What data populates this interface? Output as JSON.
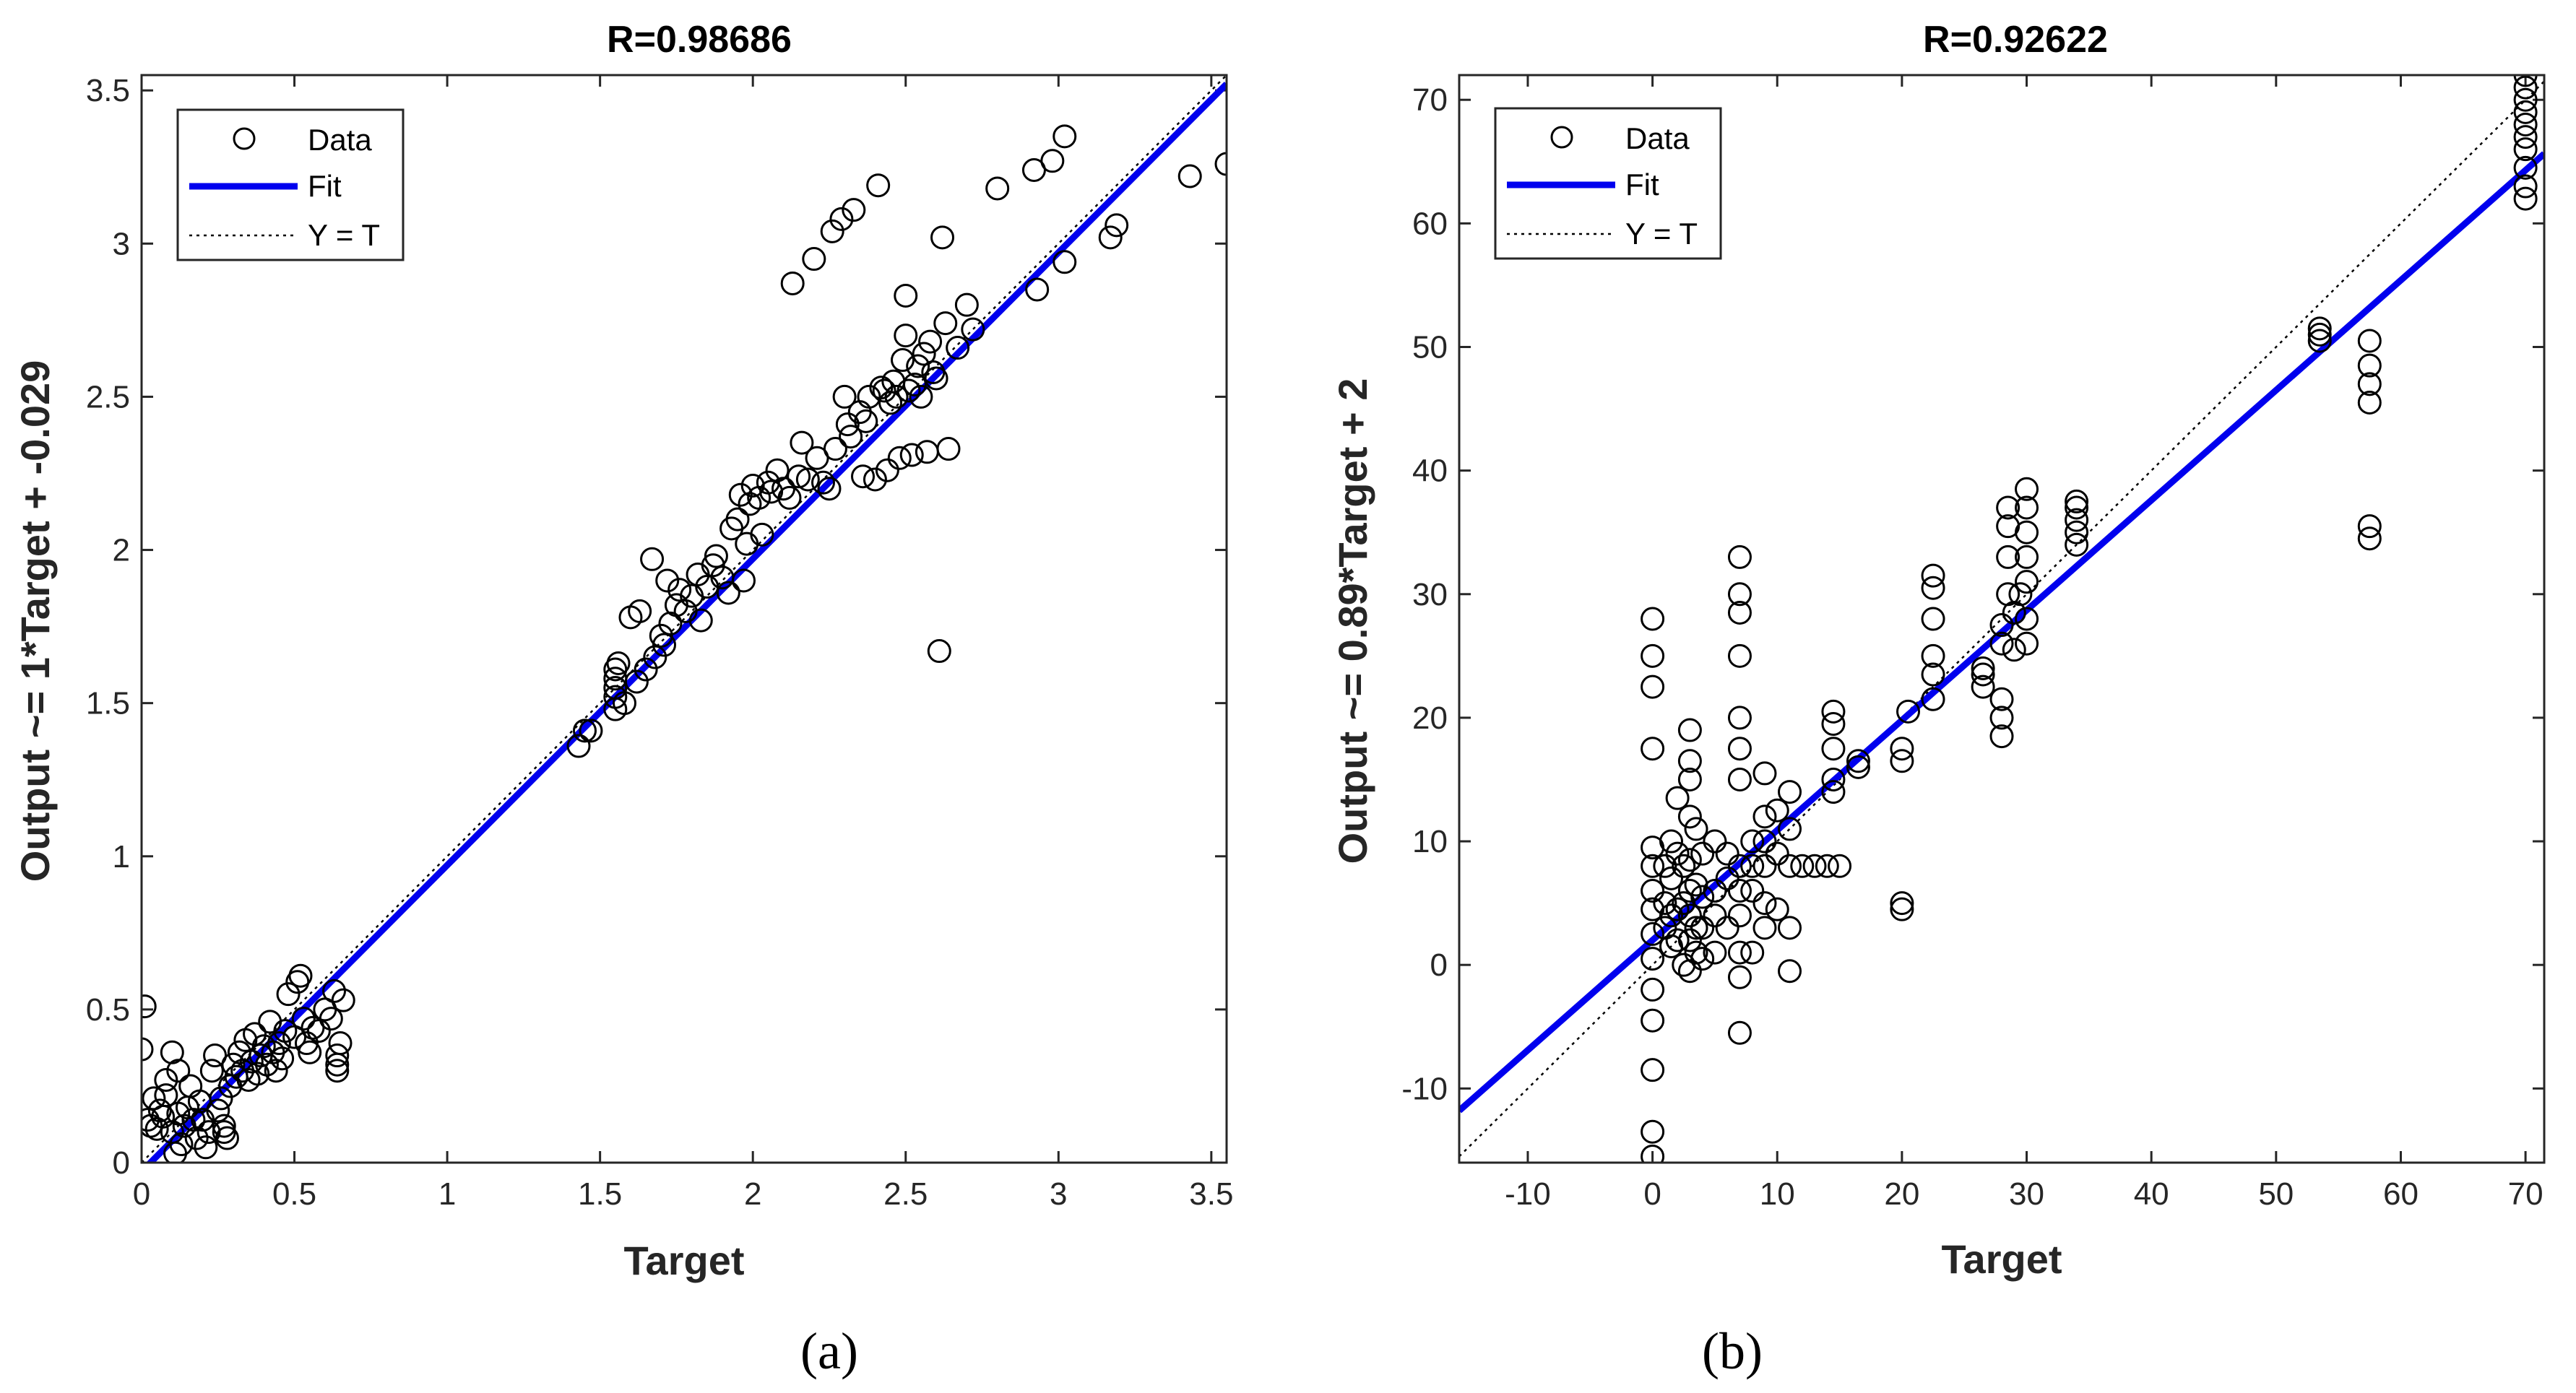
{
  "chart_data": [
    {
      "type": "scatter",
      "panel_label": "(a)",
      "title": "R=0.98686",
      "xlabel": "Target",
      "ylabel": "Output ~= 1*Target + -0.029",
      "xlim": [
        0,
        3.55
      ],
      "ylim": [
        0,
        3.55
      ],
      "xticks": [
        0,
        0.5,
        1,
        1.5,
        2,
        2.5,
        3,
        3.5
      ],
      "xtick_labels": [
        "0",
        "0.5",
        "1",
        "1.5",
        "2",
        "2.5",
        "3",
        "3.5"
      ],
      "yticks": [
        0,
        0.5,
        1,
        1.5,
        2,
        2.5,
        3,
        3.5
      ],
      "ytick_labels": [
        "0",
        "0.5",
        "1",
        "1.5",
        "2",
        "2.5",
        "3",
        "3.5"
      ],
      "legend": [
        "Data",
        "Fit",
        "Y = T"
      ],
      "legend_position": "top-left",
      "fit": {
        "slope": 1.0,
        "intercept": -0.029
      },
      "colors": {
        "fit": "#0000ee",
        "data": "#000000",
        "identity": "#000000"
      },
      "points": [
        [
          0.01,
          0.51
        ],
        [
          0.0,
          0.37
        ],
        [
          0.02,
          0.14
        ],
        [
          0.03,
          0.12
        ],
        [
          0.04,
          0.21
        ],
        [
          0.05,
          0.11
        ],
        [
          0.06,
          0.17
        ],
        [
          0.07,
          0.15
        ],
        [
          0.08,
          0.22
        ],
        [
          0.08,
          0.27
        ],
        [
          0.1,
          0.1
        ],
        [
          0.1,
          0.36
        ],
        [
          0.11,
          0.03
        ],
        [
          0.12,
          0.16
        ],
        [
          0.12,
          0.3
        ],
        [
          0.13,
          0.06
        ],
        [
          0.14,
          0.12
        ],
        [
          0.15,
          0.18
        ],
        [
          0.16,
          0.25
        ],
        [
          0.17,
          0.14
        ],
        [
          0.18,
          0.08
        ],
        [
          0.19,
          0.2
        ],
        [
          0.2,
          0.14
        ],
        [
          0.21,
          0.05
        ],
        [
          0.22,
          0.1
        ],
        [
          0.23,
          0.3
        ],
        [
          0.24,
          0.35
        ],
        [
          0.25,
          0.17
        ],
        [
          0.26,
          0.21
        ],
        [
          0.27,
          0.1
        ],
        [
          0.27,
          0.12
        ],
        [
          0.28,
          0.08
        ],
        [
          0.29,
          0.25
        ],
        [
          0.3,
          0.32
        ],
        [
          0.31,
          0.28
        ],
        [
          0.32,
          0.36
        ],
        [
          0.33,
          0.3
        ],
        [
          0.34,
          0.4
        ],
        [
          0.35,
          0.27
        ],
        [
          0.36,
          0.33
        ],
        [
          0.37,
          0.42
        ],
        [
          0.38,
          0.29
        ],
        [
          0.39,
          0.35
        ],
        [
          0.4,
          0.38
        ],
        [
          0.41,
          0.32
        ],
        [
          0.42,
          0.46
        ],
        [
          0.43,
          0.36
        ],
        [
          0.44,
          0.3
        ],
        [
          0.45,
          0.39
        ],
        [
          0.46,
          0.34
        ],
        [
          0.47,
          0.43
        ],
        [
          0.48,
          0.55
        ],
        [
          0.5,
          0.41
        ],
        [
          0.51,
          0.59
        ],
        [
          0.52,
          0.61
        ],
        [
          0.53,
          0.47
        ],
        [
          0.54,
          0.39
        ],
        [
          0.55,
          0.36
        ],
        [
          0.56,
          0.44
        ],
        [
          0.58,
          0.43
        ],
        [
          0.6,
          0.5
        ],
        [
          0.62,
          0.47
        ],
        [
          0.63,
          0.56
        ],
        [
          0.64,
          0.35
        ],
        [
          0.64,
          0.32
        ],
        [
          0.64,
          0.3
        ],
        [
          0.65,
          0.39
        ],
        [
          0.66,
          0.53
        ],
        [
          1.43,
          1.36
        ],
        [
          1.45,
          1.41
        ],
        [
          1.47,
          1.41
        ],
        [
          1.55,
          1.48
        ],
        [
          1.55,
          1.52
        ],
        [
          1.55,
          1.55
        ],
        [
          1.55,
          1.58
        ],
        [
          1.55,
          1.61
        ],
        [
          1.56,
          1.63
        ],
        [
          1.58,
          1.5
        ],
        [
          1.6,
          1.78
        ],
        [
          1.62,
          1.57
        ],
        [
          1.63,
          1.8
        ],
        [
          1.65,
          1.61
        ],
        [
          1.67,
          1.97
        ],
        [
          1.68,
          1.65
        ],
        [
          1.7,
          1.72
        ],
        [
          1.71,
          1.69
        ],
        [
          1.72,
          1.9
        ],
        [
          1.73,
          1.76
        ],
        [
          1.75,
          1.82
        ],
        [
          1.76,
          1.87
        ],
        [
          1.78,
          1.8
        ],
        [
          1.8,
          1.85
        ],
        [
          1.82,
          1.92
        ],
        [
          1.83,
          1.77
        ],
        [
          1.85,
          1.88
        ],
        [
          1.87,
          1.95
        ],
        [
          1.88,
          1.98
        ],
        [
          1.9,
          1.91
        ],
        [
          1.92,
          1.86
        ],
        [
          1.93,
          2.07
        ],
        [
          1.95,
          2.1
        ],
        [
          1.96,
          2.18
        ],
        [
          1.97,
          1.9
        ],
        [
          1.98,
          2.02
        ],
        [
          1.99,
          2.15
        ],
        [
          2.0,
          2.21
        ],
        [
          2.02,
          2.17
        ],
        [
          2.03,
          2.05
        ],
        [
          2.05,
          2.22
        ],
        [
          2.06,
          2.19
        ],
        [
          2.08,
          2.26
        ],
        [
          2.1,
          2.2
        ],
        [
          2.12,
          2.17
        ],
        [
          2.13,
          2.87
        ],
        [
          2.15,
          2.24
        ],
        [
          2.16,
          2.35
        ],
        [
          2.18,
          2.23
        ],
        [
          2.2,
          2.95
        ],
        [
          2.21,
          2.3
        ],
        [
          2.23,
          2.22
        ],
        [
          2.25,
          2.2
        ],
        [
          2.26,
          3.04
        ],
        [
          2.27,
          2.33
        ],
        [
          2.29,
          3.08
        ],
        [
          2.3,
          2.5
        ],
        [
          2.31,
          2.41
        ],
        [
          2.32,
          2.37
        ],
        [
          2.33,
          3.11
        ],
        [
          2.35,
          2.45
        ],
        [
          2.36,
          2.24
        ],
        [
          2.37,
          2.42
        ],
        [
          2.38,
          2.5
        ],
        [
          2.4,
          2.23
        ],
        [
          2.41,
          3.19
        ],
        [
          2.42,
          2.53
        ],
        [
          2.43,
          2.52
        ],
        [
          2.44,
          2.26
        ],
        [
          2.45,
          2.48
        ],
        [
          2.46,
          2.55
        ],
        [
          2.47,
          2.5
        ],
        [
          2.48,
          2.3
        ],
        [
          2.49,
          2.62
        ],
        [
          2.5,
          2.83
        ],
        [
          2.5,
          2.7
        ],
        [
          2.51,
          2.52
        ],
        [
          2.52,
          2.31
        ],
        [
          2.53,
          2.54
        ],
        [
          2.54,
          2.6
        ],
        [
          2.55,
          2.5
        ],
        [
          2.56,
          2.64
        ],
        [
          2.57,
          2.32
        ],
        [
          2.58,
          2.68
        ],
        [
          2.59,
          2.58
        ],
        [
          2.6,
          2.56
        ],
        [
          2.61,
          1.67
        ],
        [
          2.62,
          3.02
        ],
        [
          2.63,
          2.74
        ],
        [
          2.64,
          2.33
        ],
        [
          2.67,
          2.66
        ],
        [
          2.7,
          2.8
        ],
        [
          2.72,
          2.72
        ],
        [
          2.8,
          3.18
        ],
        [
          2.92,
          3.24
        ],
        [
          2.93,
          2.85
        ],
        [
          2.98,
          3.27
        ],
        [
          3.02,
          3.35
        ],
        [
          3.02,
          2.94
        ],
        [
          3.17,
          3.02
        ],
        [
          3.19,
          3.06
        ],
        [
          3.43,
          3.22
        ],
        [
          3.55,
          3.26
        ]
      ]
    },
    {
      "type": "scatter",
      "panel_label": "(b)",
      "title": "R=0.92622",
      "xlabel": "Target",
      "ylabel": "Output ~= 0.89*Target + 2",
      "xlim": [
        -15.5,
        71.5
      ],
      "ylim": [
        -16,
        72
      ],
      "xticks": [
        -10,
        0,
        10,
        20,
        30,
        40,
        50,
        60,
        70
      ],
      "xtick_labels": [
        "-10",
        "0",
        "10",
        "20",
        "30",
        "40",
        "50",
        "60",
        "70"
      ],
      "yticks": [
        -10,
        0,
        10,
        20,
        30,
        40,
        50,
        60,
        70
      ],
      "ytick_labels": [
        "-10",
        "0",
        "10",
        "20",
        "30",
        "40",
        "50",
        "60",
        "70"
      ],
      "legend": [
        "Data",
        "Fit",
        "Y = T"
      ],
      "legend_position": "top-left",
      "fit": {
        "slope": 0.89,
        "intercept": 2
      },
      "colors": {
        "fit": "#0000ee",
        "data": "#000000",
        "identity": "#000000"
      },
      "points": [
        [
          0,
          -15.5
        ],
        [
          0,
          -13.5
        ],
        [
          0,
          -8.5
        ],
        [
          0,
          -4.5
        ],
        [
          0,
          -2
        ],
        [
          0,
          0.5
        ],
        [
          0,
          2.5
        ],
        [
          0,
          4.5
        ],
        [
          0,
          6
        ],
        [
          0,
          8
        ],
        [
          0,
          9.5
        ],
        [
          0,
          17.5
        ],
        [
          0,
          22.5
        ],
        [
          0,
          25
        ],
        [
          0,
          28
        ],
        [
          1,
          3
        ],
        [
          1,
          5
        ],
        [
          1,
          8
        ],
        [
          1.5,
          1.5
        ],
        [
          1.5,
          4
        ],
        [
          1.5,
          7
        ],
        [
          1.5,
          10
        ],
        [
          2,
          2
        ],
        [
          2,
          4.5
        ],
        [
          2,
          9
        ],
        [
          2,
          13.5
        ],
        [
          2.5,
          0
        ],
        [
          2.5,
          5
        ],
        [
          2.5,
          8
        ],
        [
          3,
          -0.5
        ],
        [
          3,
          2
        ],
        [
          3,
          4
        ],
        [
          3,
          6
        ],
        [
          3,
          8.5
        ],
        [
          3,
          12
        ],
        [
          3,
          15
        ],
        [
          3,
          16.5
        ],
        [
          3,
          19
        ],
        [
          3.5,
          1
        ],
        [
          3.5,
          3
        ],
        [
          3.5,
          6.5
        ],
        [
          3.5,
          11
        ],
        [
          4,
          0.5
        ],
        [
          4,
          3
        ],
        [
          4,
          5.5
        ],
        [
          4,
          9
        ],
        [
          5,
          1
        ],
        [
          5,
          4
        ],
        [
          5,
          6
        ],
        [
          5,
          10
        ],
        [
          6,
          3
        ],
        [
          6,
          7
        ],
        [
          6,
          9
        ],
        [
          7,
          -5.5
        ],
        [
          7,
          -1
        ],
        [
          7,
          1
        ],
        [
          7,
          4
        ],
        [
          7,
          6
        ],
        [
          7,
          8
        ],
        [
          7,
          15
        ],
        [
          7,
          17.5
        ],
        [
          7,
          20
        ],
        [
          7,
          25
        ],
        [
          7,
          28.5
        ],
        [
          7,
          30
        ],
        [
          7,
          33
        ],
        [
          8,
          1
        ],
        [
          8,
          6
        ],
        [
          8,
          8
        ],
        [
          8,
          10
        ],
        [
          9,
          3
        ],
        [
          9,
          5
        ],
        [
          9,
          8
        ],
        [
          9,
          10
        ],
        [
          9,
          12
        ],
        [
          9,
          15.5
        ],
        [
          10,
          4.5
        ],
        [
          10,
          9
        ],
        [
          10,
          12.5
        ],
        [
          11,
          -0.5
        ],
        [
          11,
          3
        ],
        [
          11,
          8
        ],
        [
          11,
          11
        ],
        [
          11,
          14
        ],
        [
          12,
          8
        ],
        [
          13,
          8
        ],
        [
          14,
          8
        ],
        [
          14.5,
          14
        ],
        [
          14.5,
          15
        ],
        [
          14.5,
          17.5
        ],
        [
          14.5,
          19.5
        ],
        [
          14.5,
          20.5
        ],
        [
          15,
          8
        ],
        [
          16.5,
          16
        ],
        [
          16.5,
          16.5
        ],
        [
          20,
          4.5
        ],
        [
          20,
          5
        ],
        [
          20,
          16.5
        ],
        [
          20,
          17.5
        ],
        [
          20.5,
          20.5
        ],
        [
          22.5,
          21.5
        ],
        [
          22.5,
          23.5
        ],
        [
          22.5,
          25
        ],
        [
          22.5,
          28
        ],
        [
          22.5,
          30.5
        ],
        [
          22.5,
          31.5
        ],
        [
          26.5,
          22.5
        ],
        [
          26.5,
          23.5
        ],
        [
          26.5,
          24
        ],
        [
          28,
          18.5
        ],
        [
          28,
          20
        ],
        [
          28,
          21.5
        ],
        [
          28,
          26
        ],
        [
          28,
          27.5
        ],
        [
          28.5,
          30
        ],
        [
          28.5,
          33
        ],
        [
          28.5,
          35.5
        ],
        [
          28.5,
          37
        ],
        [
          29,
          25.5
        ],
        [
          29,
          28.5
        ],
        [
          29.5,
          30
        ],
        [
          30,
          26
        ],
        [
          30,
          28
        ],
        [
          30,
          31
        ],
        [
          30,
          33
        ],
        [
          30,
          35
        ],
        [
          30,
          37
        ],
        [
          30,
          38.5
        ],
        [
          34,
          34
        ],
        [
          34,
          35
        ],
        [
          34,
          36
        ],
        [
          34,
          37
        ],
        [
          34,
          37.5
        ],
        [
          53.5,
          50.5
        ],
        [
          53.5,
          51
        ],
        [
          53.5,
          51.5
        ],
        [
          57.5,
          34.5
        ],
        [
          57.5,
          35.5
        ],
        [
          57.5,
          45.5
        ],
        [
          57.5,
          47
        ],
        [
          57.5,
          48.5
        ],
        [
          57.5,
          50.5
        ],
        [
          70,
          62
        ],
        [
          70,
          63
        ],
        [
          70,
          64.5
        ],
        [
          70,
          66
        ],
        [
          70,
          67
        ],
        [
          70,
          68
        ],
        [
          70,
          69
        ],
        [
          70,
          70
        ],
        [
          70,
          71
        ],
        [
          70,
          72
        ]
      ]
    }
  ]
}
